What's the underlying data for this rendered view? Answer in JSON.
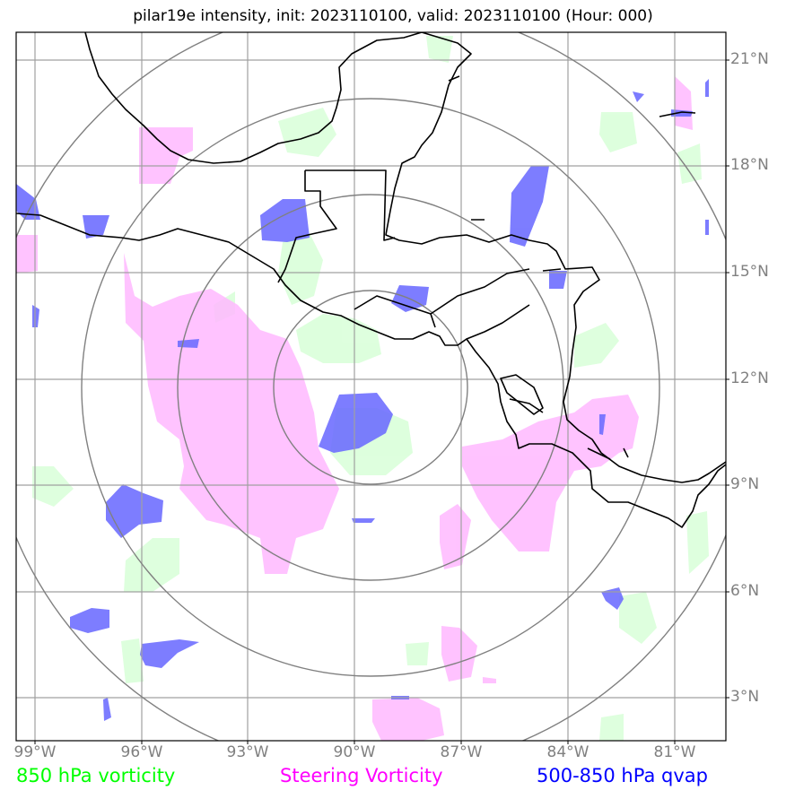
{
  "title": "pilar19e intensity, init: 2023110100, valid: 2023110100 (Hour: 000)",
  "lat_labels": [
    "21°N",
    "18°N",
    "15°N",
    "12°N",
    "9°N",
    "6°N",
    "3°N"
  ],
  "lon_labels": [
    "99°W",
    "96°W",
    "93°W",
    "90°W",
    "87°W",
    "84°W",
    "81°W"
  ],
  "legend": [
    {
      "label": "850 hPa vorticity",
      "color": "#00ff00"
    },
    {
      "label": "Steering Vorticity",
      "color": "#ff00ff"
    },
    {
      "label": "500-850 hPa qvap",
      "color": "#0000ff"
    }
  ],
  "colors": {
    "vorticity_850": "#d8ffd8",
    "steering_vorticity": "#ffb8ff",
    "qvap": "#6b6bff",
    "grid": "#a0a0a0",
    "range_rings": "#808080",
    "coastline": "#000000"
  }
}
